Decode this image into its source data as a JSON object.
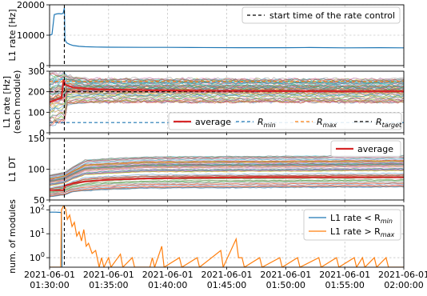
{
  "chart_data": {
    "type": "line",
    "shared_x": {
      "tick_labels": [
        [
          "2021-06-01",
          "01:30:00"
        ],
        [
          "2021-06-01",
          "01:35:00"
        ],
        [
          "2021-06-01",
          "01:40:00"
        ],
        [
          "2021-06-01",
          "01:45:00"
        ],
        [
          "2021-06-01",
          "01:50:00"
        ],
        [
          "2021-06-01",
          "01:55:00"
        ],
        [
          "2021-06-01",
          "02:00:00"
        ]
      ],
      "range": [
        "2021-06-01 01:30:00",
        "2021-06-01 02:00:00"
      ],
      "rate_control_start": "2021-06-01 01:31:15"
    },
    "panels": [
      {
        "id": "l1-rate",
        "ylabel": "L1 rate [Hz]",
        "ylim": [
          0,
          20000
        ],
        "yticks": [
          "0",
          "10000",
          "20000"
        ],
        "grid": true,
        "legend": {
          "position": "top-right",
          "entries": [
            {
              "label": "start time of the rate control",
              "color": "#000000",
              "style": "dashed"
            }
          ]
        },
        "series": [
          {
            "color": "#1f77b4",
            "points": [
              [
                0.0,
                10000
              ],
              [
                0.2,
                10300
              ],
              [
                0.4,
                16800
              ],
              [
                0.6,
                17000
              ],
              [
                0.8,
                17100
              ],
              [
                1.0,
                17000
              ],
              [
                1.15,
                17200
              ],
              [
                1.25,
                19000
              ],
              [
                1.3,
                8500
              ],
              [
                1.45,
                7500
              ],
              [
                1.7,
                7000
              ],
              [
                2.0,
                6600
              ],
              [
                2.5,
                6350
              ],
              [
                3.0,
                6200
              ],
              [
                4.0,
                6100
              ],
              [
                5.0,
                6050
              ],
              [
                8.0,
                6000
              ],
              [
                10.0,
                6000
              ],
              [
                12.0,
                5950
              ],
              [
                16.0,
                5900
              ],
              [
                20.0,
                5900
              ],
              [
                22.0,
                5950
              ],
              [
                25.0,
                5850
              ],
              [
                28.0,
                5900
              ],
              [
                30.0,
                5850
              ]
            ]
          }
        ]
      },
      {
        "id": "l1-rate-module",
        "ylabel": [
          "L1 rate [Hz]",
          "(each module)"
        ],
        "ylim": [
          0,
          300
        ],
        "yticks": [
          "0",
          "100",
          "200",
          "300"
        ],
        "grid": true,
        "legend": {
          "position": "lower-right",
          "entries": [
            {
              "label": "average",
              "color": "#d62728",
              "style": "solid"
            },
            {
              "label": "R",
              "sub": "min",
              "color": "#1f77b4",
              "style": "dashed"
            },
            {
              "label": "R",
              "sub": "max",
              "color": "#ff7f0e",
              "style": "dashed"
            },
            {
              "label": "R",
              "sub": "target",
              "color": "#000000",
              "style": "dashed"
            }
          ]
        },
        "band": {
          "low": [
            [
              0,
              40
            ],
            [
              1.25,
              60
            ],
            [
              1.3,
              140
            ],
            [
              3,
              150
            ],
            [
              30,
              150
            ]
          ],
          "high": [
            [
              0,
              290
            ],
            [
              1.25,
              300
            ],
            [
              1.3,
              280
            ],
            [
              3,
              265
            ],
            [
              30,
              262
            ]
          ]
        },
        "hlines": [
          {
            "y": 50,
            "color": "#1f77b4",
            "style": "dashed"
          },
          {
            "y": 250,
            "color": "#ff7f0e",
            "style": "dashed"
          },
          {
            "y": 200,
            "color": "#000000",
            "style": "dashed"
          }
        ],
        "average": [
          [
            0,
            150
          ],
          [
            1.0,
            170
          ],
          [
            1.2,
            260
          ],
          [
            1.3,
            235
          ],
          [
            2.0,
            220
          ],
          [
            4.0,
            212
          ],
          [
            8.0,
            208
          ],
          [
            12.0,
            205
          ],
          [
            16.0,
            204
          ],
          [
            20.0,
            203
          ],
          [
            25.0,
            202
          ],
          [
            30.0,
            202
          ]
        ]
      },
      {
        "id": "l1-dt",
        "ylabel": "L1 DT",
        "ylim": [
          50,
          150
        ],
        "yticks": [
          "50",
          "100",
          "150"
        ],
        "grid": true,
        "legend": {
          "position": "top-right",
          "entries": [
            {
              "label": "average",
              "color": "#d62728",
              "style": "solid"
            }
          ]
        },
        "band": {
          "low": [
            [
              0,
              55
            ],
            [
              1.25,
              58
            ],
            [
              2,
              63
            ],
            [
              4,
              66
            ],
            [
              8,
              69
            ],
            [
              30,
              71
            ]
          ],
          "high": [
            [
              0,
              90
            ],
            [
              1.25,
              95
            ],
            [
              3,
              115
            ],
            [
              8,
              120
            ],
            [
              30,
              122
            ]
          ]
        },
        "average": [
          [
            0,
            66
          ],
          [
            1.2,
            66
          ],
          [
            1.3,
            73
          ],
          [
            2.0,
            77
          ],
          [
            3.0,
            80
          ],
          [
            5.0,
            83
          ],
          [
            8.0,
            85
          ],
          [
            12.0,
            86
          ],
          [
            18.0,
            87
          ],
          [
            25.0,
            87
          ],
          [
            30.0,
            87
          ]
        ]
      },
      {
        "id": "num-modules",
        "ylabel": [
          "num. of modules"
        ],
        "yscale": "log",
        "ylim": [
          0.4,
          150
        ],
        "ytick_values": [
          1,
          10,
          100
        ],
        "grid": true,
        "legend": {
          "position": "top-right",
          "entries": [
            {
              "label": "L1 rate < R",
              "sub": "min",
              "color": "#1f77b4",
              "style": "solid"
            },
            {
              "label": "L1 rate > R",
              "sub": "max",
              "color": "#ff7f0e",
              "style": "solid"
            }
          ]
        },
        "series": [
          {
            "color": "#1f77b4",
            "points": [
              [
                0.0,
                80
              ],
              [
                0.5,
                80
              ],
              [
                0.9,
                78
              ],
              [
                1.0,
                75
              ],
              [
                1.05,
                0.4
              ]
            ]
          },
          {
            "color": "#ff7f0e",
            "points": [
              [
                0.0,
                0.4
              ],
              [
                0.95,
                0.4
              ],
              [
                1.0,
                100
              ],
              [
                1.2,
                150
              ],
              [
                1.35,
                110
              ],
              [
                1.5,
                40
              ],
              [
                1.7,
                60
              ],
              [
                1.9,
                20
              ],
              [
                2.1,
                30
              ],
              [
                2.3,
                8
              ],
              [
                2.5,
                12
              ],
              [
                2.7,
                5
              ],
              [
                2.9,
                15
              ],
              [
                3.1,
                3
              ],
              [
                3.3,
                4
              ],
              [
                3.6,
                1.5
              ],
              [
                3.9,
                2
              ],
              [
                4.2,
                0.4
              ],
              [
                4.4,
                1
              ],
              [
                4.6,
                0.4
              ],
              [
                5.0,
                1
              ],
              [
                5.2,
                0.4
              ],
              [
                6.0,
                1.4
              ],
              [
                6.2,
                0.4
              ],
              [
                7.0,
                1
              ],
              [
                7.2,
                0.4
              ],
              [
                8.5,
                0.4
              ],
              [
                8.7,
                1
              ],
              [
                8.9,
                0.4
              ],
              [
                9.5,
                3
              ],
              [
                9.7,
                0.4
              ],
              [
                11.0,
                1
              ],
              [
                11.2,
                0.4
              ],
              [
                12.5,
                1
              ],
              [
                12.7,
                0.4
              ],
              [
                14.5,
                2
              ],
              [
                14.7,
                0.4
              ],
              [
                15.8,
                6
              ],
              [
                16.0,
                1
              ],
              [
                16.3,
                1
              ],
              [
                16.5,
                0.4
              ],
              [
                17.8,
                1
              ],
              [
                18.0,
                0.4
              ],
              [
                19.5,
                1
              ],
              [
                19.7,
                0.4
              ],
              [
                21.0,
                1
              ],
              [
                21.2,
                0.4
              ],
              [
                22.8,
                1
              ],
              [
                23.0,
                0.4
              ],
              [
                24.3,
                1
              ],
              [
                24.5,
                0.4
              ],
              [
                25.8,
                1
              ],
              [
                26.0,
                0.4
              ],
              [
                26.5,
                1
              ],
              [
                26.7,
                0.4
              ],
              [
                27.5,
                1
              ],
              [
                27.7,
                0.4
              ],
              [
                28.5,
                1
              ],
              [
                28.7,
                0.4
              ],
              [
                30.0,
                0.4
              ]
            ]
          }
        ]
      }
    ]
  }
}
